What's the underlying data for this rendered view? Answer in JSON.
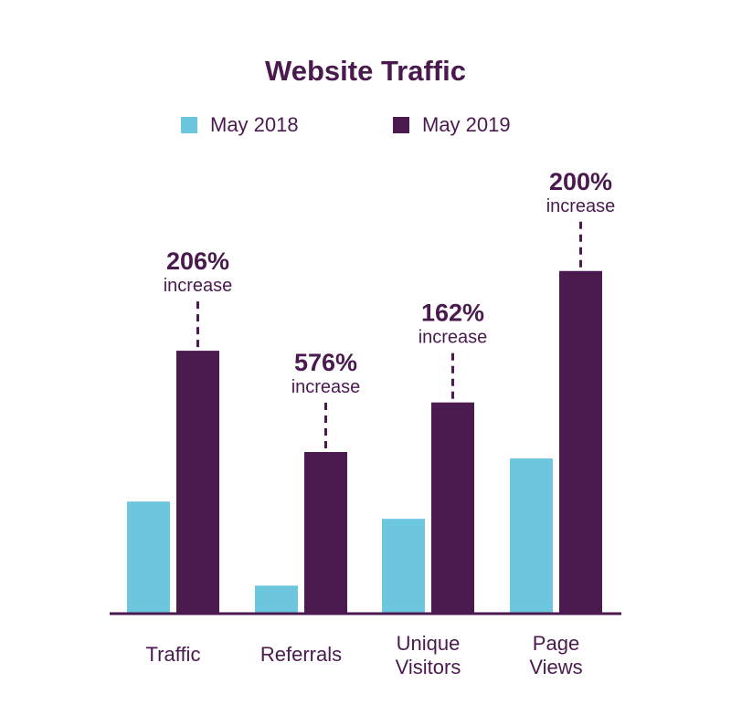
{
  "colors": {
    "series_2018": "#6bc6de",
    "series_2019": "#4b1a4e",
    "text": "#4a1a4f",
    "axis": "#4a1a4f"
  },
  "chart_data": {
    "type": "bar",
    "title": "Website Traffic",
    "categories": [
      [
        "Traffic"
      ],
      [
        "Referrals"
      ],
      [
        "Unique",
        "Visitors"
      ],
      [
        "Page",
        "Views"
      ]
    ],
    "series": [
      {
        "name": "May 2018",
        "values": [
          26,
          6.5,
          22,
          36
        ]
      },
      {
        "name": "May 2019",
        "values": [
          61,
          37.5,
          49,
          79.5
        ]
      }
    ],
    "annotations": [
      {
        "percent": "206%",
        "word": "increase"
      },
      {
        "percent": "576%",
        "word": "increase"
      },
      {
        "percent": "162%",
        "word": "increase"
      },
      {
        "percent": "200%",
        "word": "increase"
      }
    ],
    "ylim": [
      0,
      100
    ],
    "grid": false,
    "legend_position": "top-center"
  }
}
